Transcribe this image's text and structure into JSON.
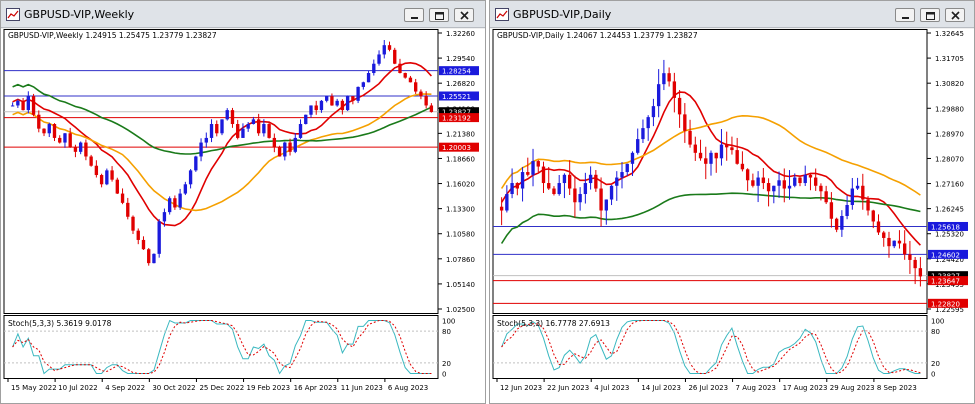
{
  "left": {
    "title": "GBPUSD-VIP,Weekly",
    "ohlc_label": "GBPUSD-VIP,Weekly  1.24915 1.25475 1.23779 1.23827",
    "stoch_label": "Stoch(5,3,3) 5.3619 9.0178",
    "price_axis": [
      "1.32260",
      "1.29540",
      "1.26820",
      "1.24100",
      "1.21380",
      "1.18660",
      "1.16020",
      "1.13300",
      "1.10580",
      "1.07860",
      "1.05140",
      "1.02500"
    ],
    "stoch_axis": [
      "100",
      "80",
      "20",
      "0"
    ],
    "dates": [
      "15 May 2022",
      "10 Jul 2022",
      "4 Sep 2022",
      "30 Oct 2022",
      "25 Dec 2022",
      "19 Feb 2023",
      "16 Apr 2023",
      "11 Jun 2023",
      "6 Aug 2023"
    ],
    "hlines": [
      {
        "label": "1.28254",
        "price": 1.28254,
        "color": "#3030c8",
        "box": "#1a1adc"
      },
      {
        "label": "1.25521",
        "price": 1.25521,
        "color": "#3030c8",
        "box": "#1a1adc"
      },
      {
        "label": "1.23827",
        "price": 1.23827,
        "color": "#c0c0c0",
        "box": "#000000"
      },
      {
        "label": "1.23192",
        "price": 1.23192,
        "color": "#e00000",
        "box": "#e00000"
      },
      {
        "label": "1.20003",
        "price": 1.20003,
        "color": "#e00000",
        "box": "#e00000"
      }
    ]
  },
  "right": {
    "title": "GBPUSD-VIP,Daily",
    "ohlc_label": "GBPUSD-VIP,Daily  1.24067 1.24453 1.23779 1.23827",
    "stoch_label": "Stoch(5,3,3) 16.7778 27.6913",
    "price_axis": [
      "1.32645",
      "1.31705",
      "1.30820",
      "1.29880",
      "1.28970",
      "1.28070",
      "1.27160",
      "1.26245",
      "1.25320",
      "1.24420",
      "1.23495",
      "1.22595"
    ],
    "stoch_axis": [
      "100",
      "80",
      "20",
      "0"
    ],
    "dates": [
      "12 Jun 2023",
      "22 Jun 2023",
      "4 Jul 2023",
      "14 Jul 2023",
      "26 Jul 2023",
      "7 Aug 2023",
      "17 Aug 2023",
      "29 Aug 2023",
      "8 Sep 2023"
    ],
    "hlines": [
      {
        "label": "1.25618",
        "price": 1.25618,
        "color": "#3030c8",
        "box": "#1a1adc"
      },
      {
        "label": "1.24602",
        "price": 1.24602,
        "color": "#3030c8",
        "box": "#1a1adc"
      },
      {
        "label": "1.23827",
        "price": 1.23827,
        "color": "#c0c0c0",
        "box": "#000000"
      },
      {
        "label": "1.23647",
        "price": 1.23647,
        "color": "#e00000",
        "box": "#e00000"
      },
      {
        "label": "1.22820",
        "price": 1.2282,
        "color": "#e00000",
        "box": "#e00000"
      }
    ]
  },
  "colors": {
    "bull": "#1a1adc",
    "bear": "#e00000",
    "ma_fast": "#e00000",
    "ma_mid": "#f5a000",
    "ma_slow": "#1a7a1a",
    "stoch_main": "#3ab8c0",
    "stoch_signal": "#e00000"
  },
  "icons": {
    "window": "chart-window-icon",
    "min": "minimize-icon",
    "max": "maximize-icon",
    "close": "close-icon"
  }
}
